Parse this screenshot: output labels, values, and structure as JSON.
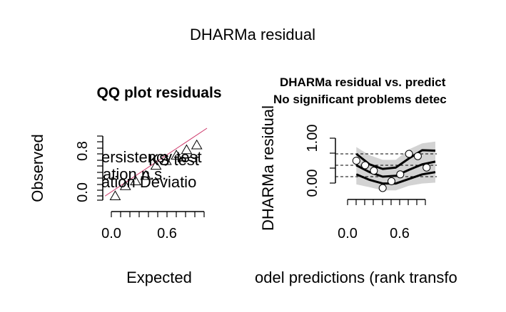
{
  "main_title": "DHARMa residual",
  "chart_data": [
    {
      "type": "scatter",
      "title": "QQ plot residuals",
      "xlabel": "Expected",
      "ylabel": "Observed",
      "x_ticks": [
        "0.0",
        "0.6"
      ],
      "y_ticks": [
        "0.0",
        "0.8"
      ],
      "xlim": [
        -0.05,
        1.0
      ],
      "ylim": [
        -0.05,
        1.0
      ],
      "points": [
        {
          "x": 0.1,
          "y": 0.0
        },
        {
          "x": 0.2,
          "y": 0.15
        },
        {
          "x": 0.3,
          "y": 0.22
        },
        {
          "x": 0.4,
          "y": 0.3
        },
        {
          "x": 0.5,
          "y": 0.45
        },
        {
          "x": 0.6,
          "y": 0.52
        },
        {
          "x": 0.7,
          "y": 0.6
        },
        {
          "x": 0.8,
          "y": 0.68
        },
        {
          "x": 0.9,
          "y": 0.75
        }
      ],
      "overlay_text": [
        "ersistency test",
        "KS test",
        "ation n.s.",
        "ation Deviatio"
      ],
      "reference_line_color": "#cc3366"
    },
    {
      "type": "scatter",
      "title": "DHARMa residual vs. predict",
      "subtitle": "No significant problems detec",
      "xlabel": "odel predictions (rank transfo",
      "ylabel": "DHARMa residual",
      "x_ticks": [
        "0.0",
        "0.6"
      ],
      "y_ticks": [
        "0.00",
        "1.00"
      ],
      "xlim": [
        -0.05,
        1.05
      ],
      "ylim": [
        -0.1,
        1.1
      ],
      "hlines": [
        0.25,
        0.5,
        0.75
      ],
      "points": [
        {
          "x": 0.1,
          "y": 0.6
        },
        {
          "x": 0.2,
          "y": 0.5
        },
        {
          "x": 0.3,
          "y": 0.38
        },
        {
          "x": 0.4,
          "y": 0.0
        },
        {
          "x": 0.5,
          "y": 0.15
        },
        {
          "x": 0.6,
          "y": 0.3
        },
        {
          "x": 0.7,
          "y": 0.75
        },
        {
          "x": 0.8,
          "y": 0.7
        },
        {
          "x": 0.9,
          "y": 0.45
        }
      ],
      "quantile_curves": [
        [
          [
            0.1,
            0.75
          ],
          [
            0.25,
            0.52
          ],
          [
            0.4,
            0.42
          ],
          [
            0.55,
            0.45
          ],
          [
            0.7,
            0.65
          ],
          [
            0.85,
            0.83
          ],
          [
            1.0,
            0.82
          ]
        ],
        [
          [
            0.1,
            0.5
          ],
          [
            0.25,
            0.35
          ],
          [
            0.4,
            0.25
          ],
          [
            0.55,
            0.27
          ],
          [
            0.7,
            0.4
          ],
          [
            0.85,
            0.52
          ],
          [
            1.0,
            0.58
          ]
        ],
        [
          [
            0.1,
            0.3
          ],
          [
            0.25,
            0.18
          ],
          [
            0.4,
            0.1
          ],
          [
            0.55,
            0.1
          ],
          [
            0.7,
            0.2
          ],
          [
            0.85,
            0.3
          ],
          [
            1.0,
            0.35
          ]
        ]
      ],
      "band_upper": [
        [
          0.1,
          0.9
        ],
        [
          0.25,
          0.72
        ],
        [
          0.4,
          0.62
        ],
        [
          0.55,
          0.62
        ],
        [
          0.7,
          0.85
        ],
        [
          0.85,
          0.98
        ],
        [
          1.0,
          1.02
        ]
      ],
      "band_lower": [
        [
          0.1,
          0.08
        ],
        [
          0.25,
          0.02
        ],
        [
          0.4,
          -0.05
        ],
        [
          0.55,
          -0.05
        ],
        [
          0.7,
          0.05
        ],
        [
          0.85,
          0.1
        ],
        [
          1.0,
          0.12
        ]
      ],
      "band_color": "#d3d3d3"
    }
  ]
}
